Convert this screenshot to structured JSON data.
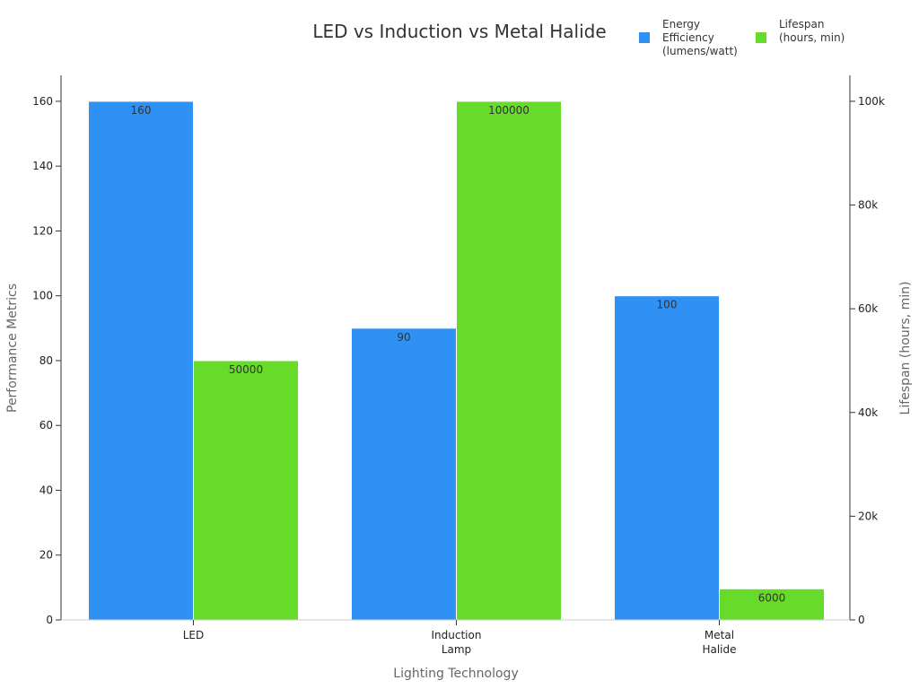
{
  "chart_data": {
    "type": "bar",
    "title": "LED vs Induction vs Metal Halide",
    "xlabel": "Lighting Technology",
    "ylabel": "Performance Metrics",
    "y2label": "Lifespan (hours, min)",
    "categories": [
      [
        "LED"
      ],
      [
        "Induction",
        "Lamp"
      ],
      [
        "Metal",
        "Halide"
      ]
    ],
    "ylim": [
      0,
      168
    ],
    "y2lim": [
      0,
      105000
    ],
    "yticks": [
      0,
      20,
      40,
      60,
      80,
      100,
      120,
      140,
      160
    ],
    "y2ticks": [
      0,
      20000,
      40000,
      60000,
      80000,
      100000
    ],
    "y2ticklabels": [
      "0",
      "20k",
      "40k",
      "60k",
      "80k",
      "100k"
    ],
    "series": [
      {
        "name": [
          "Energy",
          "Efficiency",
          "(lumens/watt)"
        ],
        "axis": "left",
        "color": "#3091f5",
        "values": [
          160,
          90,
          100
        ],
        "labels": [
          "160",
          "90",
          "100"
        ]
      },
      {
        "name": [
          "Lifespan",
          "(hours, min)"
        ],
        "axis": "right",
        "color": "#66db29",
        "values": [
          50000,
          100000,
          6000
        ],
        "labels": [
          "50000",
          "100000",
          "6000"
        ]
      }
    ],
    "legend_position": "top-right",
    "grid": false
  }
}
